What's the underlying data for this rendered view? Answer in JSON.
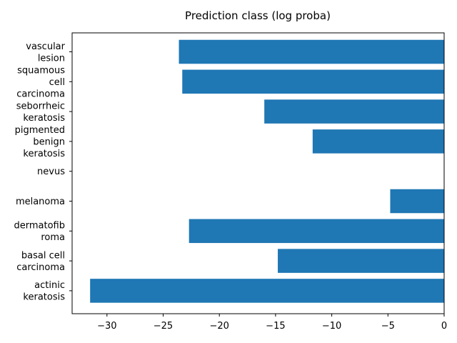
{
  "chart_data": {
    "type": "bar",
    "orientation": "horizontal",
    "title": "Prediction class (log proba)",
    "xlabel": "",
    "ylabel": "",
    "categories": [
      [
        "actinic",
        "keratosis"
      ],
      [
        "basal cell",
        "carcinoma"
      ],
      [
        "dermatofib",
        "roma"
      ],
      [
        "melanoma"
      ],
      [
        "nevus"
      ],
      [
        "pigmented",
        "benign",
        "keratosis"
      ],
      [
        "seborrheic",
        "keratosis"
      ],
      [
        "squamous",
        "cell",
        "carcinoma"
      ],
      [
        "vascular",
        "lesion"
      ]
    ],
    "values": [
      -31.5,
      -14.8,
      -22.7,
      -4.8,
      0,
      -11.7,
      -16.0,
      -23.3,
      -23.6
    ],
    "xlim": [
      -33.1,
      0
    ],
    "xticks": [
      -30,
      -25,
      -20,
      -15,
      -10,
      -5,
      0
    ],
    "xtick_labels": [
      "−30",
      "−25",
      "−20",
      "−15",
      "−10",
      "−5",
      "0"
    ],
    "bar_color": "#1f77b4",
    "grid": false,
    "legend": "none"
  }
}
